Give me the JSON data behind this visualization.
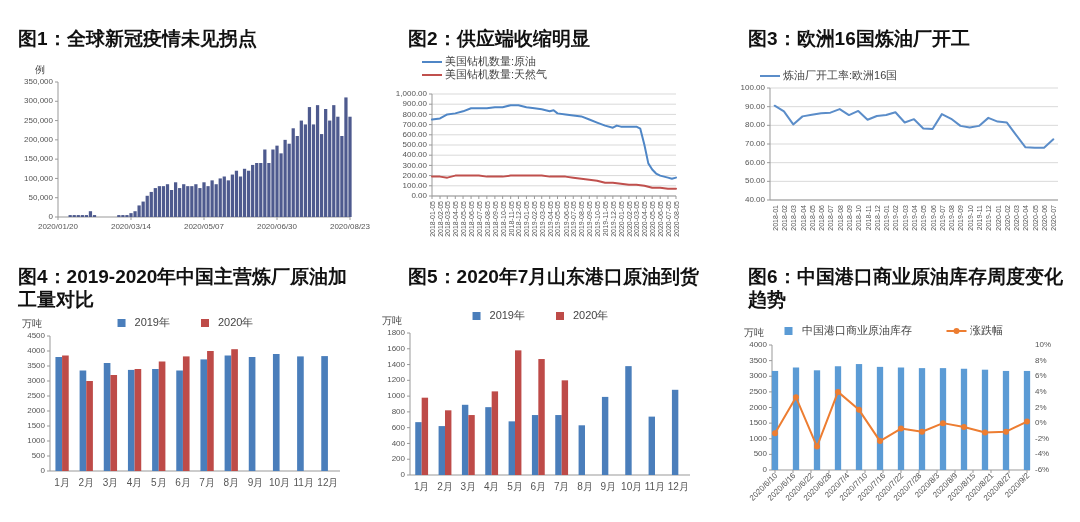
{
  "chart_data": [
    {
      "type": "bar",
      "title": "图1：全球新冠疫情未见拐点",
      "ylabel": "例",
      "x": [
        "2020-01-20",
        "2020-01-23",
        "2020-01-26",
        "2020-01-29",
        "2020-02-01",
        "2020-02-04",
        "2020-02-07",
        "2020-02-10",
        "2020-02-13",
        "2020-02-16",
        "2020-02-19",
        "2020-02-22",
        "2020-02-25",
        "2020-02-28",
        "2020-03-02",
        "2020-03-05",
        "2020-03-08",
        "2020-03-11",
        "2020-03-14",
        "2020-03-17",
        "2020-03-20",
        "2020-03-23",
        "2020-03-26",
        "2020-03-29",
        "2020-04-01",
        "2020-04-04",
        "2020-04-07",
        "2020-04-10",
        "2020-04-13",
        "2020-04-16",
        "2020-04-19",
        "2020-04-22",
        "2020-04-25",
        "2020-04-28",
        "2020-05-01",
        "2020-05-04",
        "2020-05-07",
        "2020-05-10",
        "2020-05-13",
        "2020-05-16",
        "2020-05-19",
        "2020-05-22",
        "2020-05-25",
        "2020-05-28",
        "2020-05-31",
        "2020-06-03",
        "2020-06-06",
        "2020-06-09",
        "2020-06-12",
        "2020-06-15",
        "2020-06-18",
        "2020-06-21",
        "2020-06-24",
        "2020-06-27",
        "2020-06-30",
        "2020-07-03",
        "2020-07-06",
        "2020-07-09",
        "2020-07-12",
        "2020-07-15",
        "2020-07-18",
        "2020-07-21",
        "2020-07-24",
        "2020-07-27",
        "2020-07-30",
        "2020-08-02",
        "2020-08-05",
        "2020-08-08",
        "2020-08-11",
        "2020-08-14",
        "2020-08-17",
        "2020-08-20",
        "2020-08-23"
      ],
      "series": [
        {
          "color": "#4e5a8e",
          "values": [
            0,
            0,
            0,
            5000,
            5000,
            5000,
            5000,
            5000,
            15000,
            5000,
            0,
            0,
            0,
            0,
            0,
            5000,
            5000,
            5000,
            10000,
            15000,
            30000,
            40000,
            55000,
            65000,
            75000,
            80000,
            80000,
            85000,
            70000,
            90000,
            75000,
            85000,
            80000,
            80000,
            85000,
            75000,
            90000,
            80000,
            95000,
            85000,
            100000,
            105000,
            95000,
            110000,
            120000,
            105000,
            125000,
            120000,
            135000,
            140000,
            140000,
            175000,
            140000,
            175000,
            185000,
            165000,
            200000,
            190000,
            230000,
            210000,
            250000,
            240000,
            285000,
            240000,
            290000,
            215000,
            280000,
            250000,
            290000,
            260000,
            210000,
            310000,
            260000
          ]
        }
      ],
      "xlim": [
        "2020-01-20",
        "2020-08-23"
      ],
      "xticks": [
        {
          "value": "2020-01-20",
          "label": "2020/01/20"
        },
        {
          "value": "2020-03-14",
          "label": "2020/03/14"
        },
        {
          "value": "2020-05-07",
          "label": "2020/05/07"
        },
        {
          "value": "2020-06-30",
          "label": "2020/06/30"
        },
        {
          "value": "2020-08-23",
          "label": "2020/08/23"
        }
      ],
      "ylim": [
        0,
        350000
      ],
      "yticks": [
        {
          "value": 0,
          "label": "0"
        },
        {
          "value": 50000,
          "label": "50,000"
        },
        {
          "value": 100000,
          "label": "100,000"
        },
        {
          "value": 150000,
          "label": "150,000"
        },
        {
          "value": 200000,
          "label": "200,000"
        },
        {
          "value": 250000,
          "label": "250,000"
        },
        {
          "value": 300000,
          "label": "300,000"
        },
        {
          "value": 350000,
          "label": "350,000"
        }
      ],
      "grid": false,
      "legend": false
    },
    {
      "type": "line",
      "title": "图2：供应端收缩明显",
      "legend": "top left",
      "grid": "y",
      "series": [
        {
          "name": "美国钻机数量:原油",
          "color": "#4f86c6",
          "x": [
            "2018-01-05",
            "2018-02-05",
            "2018-03-05",
            "2018-04-05",
            "2018-05-05",
            "2018-06-05",
            "2018-07-05",
            "2018-08-05",
            "2018-09-05",
            "2018-10-05",
            "2018-11-05",
            "2018-11-20",
            "2018-12-05",
            "2019-01-05",
            "2019-02-05",
            "2019-03-05",
            "2019-04-05",
            "2019-04-20",
            "2019-05-05",
            "2019-06-05",
            "2019-07-05",
            "2019-08-05",
            "2019-09-05",
            "2019-10-05",
            "2019-11-05",
            "2019-12-05",
            "2019-12-20",
            "2020-01-05",
            "2020-02-05",
            "2020-03-05",
            "2020-03-20",
            "2020-04-05",
            "2020-04-20",
            "2020-05-05",
            "2020-05-20",
            "2020-06-05",
            "2020-07-05",
            "2020-07-20",
            "2020-08-05"
          ],
          "values": [
            750,
            760,
            800,
            810,
            830,
            860,
            860,
            860,
            870,
            870,
            890,
            890,
            890,
            870,
            860,
            850,
            830,
            840,
            810,
            800,
            790,
            780,
            750,
            720,
            690,
            670,
            690,
            680,
            680,
            680,
            660,
            500,
            320,
            260,
            220,
            200,
            180,
            170,
            180
          ]
        },
        {
          "name": "美国钻机数量:天然气",
          "color": "#c0504d",
          "x": [
            "2018-01-05",
            "2018-02-05",
            "2018-03-05",
            "2018-04-05",
            "2018-05-05",
            "2018-06-05",
            "2018-07-05",
            "2018-08-05",
            "2018-09-05",
            "2018-10-05",
            "2018-11-05",
            "2018-12-05",
            "2019-01-05",
            "2019-02-05",
            "2019-03-05",
            "2019-04-05",
            "2019-05-05",
            "2019-06-05",
            "2019-07-05",
            "2019-08-05",
            "2019-09-05",
            "2019-10-05",
            "2019-11-05",
            "2019-12-05",
            "2020-01-05",
            "2020-02-05",
            "2020-03-05",
            "2020-04-05",
            "2020-05-05",
            "2020-06-05",
            "2020-07-05",
            "2020-08-05"
          ],
          "values": [
            190,
            190,
            180,
            200,
            200,
            200,
            200,
            190,
            190,
            190,
            200,
            200,
            200,
            200,
            200,
            190,
            190,
            190,
            180,
            170,
            160,
            150,
            130,
            130,
            120,
            110,
            110,
            100,
            80,
            80,
            70,
            70
          ]
        }
      ],
      "xlim": [
        "2018-01-05",
        "2020-08-05"
      ],
      "xticks": [
        "2018-01-05",
        "2018-02-05",
        "2018-03-05",
        "2018-04-05",
        "2018-05-05",
        "2018-06-05",
        "2018-07-05",
        "2018-08-05",
        "2018-09-05",
        "2018-10-05",
        "2018-11-05",
        "2018-12-05",
        "2019-01-05",
        "2019-02-05",
        "2019-03-05",
        "2019-04-05",
        "2019-05-05",
        "2019-06-05",
        "2019-07-05",
        "2019-08-05",
        "2019-09-05",
        "2019-10-05",
        "2019-11-05",
        "2019-12-05",
        "2020-01-05",
        "2020-02-05",
        "2020-03-05",
        "2020-04-05",
        "2020-05-05",
        "2020-06-05",
        "2020-07-05",
        "2020-08-05"
      ],
      "ylim": [
        0,
        1000
      ],
      "yticks": [
        {
          "value": 0,
          "label": "0.00"
        },
        {
          "value": 100,
          "label": "100.00"
        },
        {
          "value": 200,
          "label": "200.00"
        },
        {
          "value": 300,
          "label": "300.00"
        },
        {
          "value": 400,
          "label": "400.00"
        },
        {
          "value": 500,
          "label": "500.00"
        },
        {
          "value": 600,
          "label": "600.00"
        },
        {
          "value": 700,
          "label": "700.00"
        },
        {
          "value": 800,
          "label": "800.00"
        },
        {
          "value": 900,
          "label": "900.00"
        },
        {
          "value": 1000,
          "label": "1,000.00"
        }
      ]
    },
    {
      "type": "line",
      "title": "图3：欧洲16国炼油厂开工",
      "legend": "top left",
      "grid": "y",
      "categories": [
        "2018-01",
        "2018-02",
        "2018-03",
        "2018-04",
        "2018-05",
        "2018-06",
        "2018-07",
        "2018-08",
        "2018-09",
        "2018-10",
        "2018-11",
        "2018-12",
        "2019-01",
        "2019-02",
        "2019-03",
        "2019-04",
        "2019-05",
        "2019-06",
        "2019-07",
        "2019-08",
        "2019-09",
        "2019-10",
        "2019-11",
        "2019-12",
        "2020-01",
        "2020-02",
        "2020-03",
        "2020-04",
        "2020-05",
        "2020-06",
        "2020-07"
      ],
      "series": [
        {
          "name": "炼油厂开工率:欧洲16国",
          "color": "#5b8dc9",
          "values": [
            90.5,
            87.5,
            80.5,
            84.8,
            85.7,
            86.5,
            86.8,
            88.7,
            85.5,
            87.7,
            83,
            85,
            85.5,
            87,
            81.5,
            83.3,
            78.3,
            78,
            86,
            83.5,
            79.7,
            78.8,
            79.7,
            84,
            82,
            81.5,
            74.8,
            68.2,
            68,
            68,
            72.5
          ]
        }
      ],
      "ylim": [
        40,
        100
      ],
      "yticks": [
        {
          "value": 40,
          "label": "40.00"
        },
        {
          "value": 50,
          "label": "50.00"
        },
        {
          "value": 60,
          "label": "60.00"
        },
        {
          "value": 70,
          "label": "70.00"
        },
        {
          "value": 80,
          "label": "80.00"
        },
        {
          "value": 90,
          "label": "90.00"
        },
        {
          "value": 100,
          "label": "100.00"
        }
      ]
    },
    {
      "type": "bar",
      "title": "图4：2019-2020年中国主营炼厂原油加工量对比",
      "ylabel": "万吨",
      "legend": "top",
      "grid": false,
      "categories": [
        "1月",
        "2月",
        "3月",
        "4月",
        "5月",
        "6月",
        "7月",
        "8月",
        "9月",
        "10月",
        "11月",
        "12月"
      ],
      "series": [
        {
          "name": "2019年",
          "color": "#4a7ebb",
          "values": [
            3800,
            3350,
            3600,
            3370,
            3400,
            3350,
            3720,
            3850,
            3800,
            3900,
            3820,
            3830
          ]
        },
        {
          "name": "2020年",
          "color": "#be4b48",
          "values": [
            3850,
            3000,
            3200,
            3400,
            3650,
            3820,
            4000,
            4060,
            null,
            null,
            null,
            null
          ]
        }
      ],
      "ylim": [
        0,
        4500
      ],
      "yticks": [
        0,
        500,
        1000,
        1500,
        2000,
        2500,
        3000,
        3500,
        4000,
        4500
      ]
    },
    {
      "type": "bar",
      "title": "图5：2020年7月山东港口原油到货",
      "ylabel": "万吨",
      "legend": "top",
      "grid": false,
      "categories": [
        "1月",
        "2月",
        "3月",
        "4月",
        "5月",
        "6月",
        "7月",
        "8月",
        "9月",
        "10月",
        "11月",
        "12月"
      ],
      "series": [
        {
          "name": "2019年",
          "color": "#4a7ebb",
          "values": [
            670,
            620,
            890,
            860,
            680,
            760,
            760,
            630,
            990,
            1380,
            740,
            1080
          ]
        },
        {
          "name": "2020年",
          "color": "#be4b48",
          "values": [
            980,
            820,
            760,
            1060,
            1580,
            1470,
            1200,
            null,
            null,
            null,
            null,
            null
          ]
        }
      ],
      "ylim": [
        0,
        1800
      ],
      "yticks": [
        0,
        200,
        400,
        600,
        800,
        1000,
        1200,
        1400,
        1600,
        1800
      ]
    },
    {
      "type": "bar",
      "title": "图6：中国港口商业原油库存周度变化趋势",
      "ylabel": "万吨",
      "legend": "top",
      "grid": false,
      "marker": "circle",
      "x": [
        "2020-06-10",
        "2020-06-17",
        "2020-06-24",
        "2020-07-01",
        "2020-07-08",
        "2020-07-15",
        "2020-07-22",
        "2020-07-29",
        "2020-08-05",
        "2020-08-12",
        "2020-08-19",
        "2020-08-26",
        "2020-09-02"
      ],
      "series": [
        {
          "name": "中国港口商业原油库存",
          "color": "#5b9bd5",
          "values": [
            3170,
            3280,
            3190,
            3320,
            3390,
            3300,
            3280,
            3260,
            3260,
            3240,
            3210,
            3170,
            3170
          ]
        },
        {
          "name": "涨跌幅",
          "type": "line",
          "axis": "y2",
          "color": "#ed7d31",
          "values": [
            -1.3,
            3.3,
            -3.0,
            4.0,
            1.7,
            -2.3,
            -0.7,
            -1.1,
            0.0,
            -0.5,
            -1.2,
            -1.1,
            0.2
          ]
        }
      ],
      "xlim": [
        "2020-06-09",
        "2020-09-03"
      ],
      "xticks": [
        {
          "value": "2020-06-10",
          "label": "2020/6/10"
        },
        {
          "value": "2020-06-16",
          "label": "2020/6/16"
        },
        {
          "value": "2020-06-22",
          "label": "2020/6/22"
        },
        {
          "value": "2020-06-28",
          "label": "2020/6/28"
        },
        {
          "value": "2020-07-04",
          "label": "2020/7/4"
        },
        {
          "value": "2020-07-10",
          "label": "2020/7/10"
        },
        {
          "value": "2020-07-16",
          "label": "2020/7/16"
        },
        {
          "value": "2020-07-22",
          "label": "2020/7/22"
        },
        {
          "value": "2020-07-28",
          "label": "2020/7/28"
        },
        {
          "value": "2020-08-03",
          "label": "2020/8/3"
        },
        {
          "value": "2020-08-09",
          "label": "2020/8/9"
        },
        {
          "value": "2020-08-15",
          "label": "2020/8/15"
        },
        {
          "value": "2020-08-21",
          "label": "2020/8/21"
        },
        {
          "value": "2020-08-27",
          "label": "2020/8/27"
        },
        {
          "value": "2020-09-02",
          "label": "2020/9/2"
        }
      ],
      "ylim": [
        0,
        4000
      ],
      "yticks": [
        0,
        500,
        1000,
        1500,
        2000,
        2500,
        3000,
        3500,
        4000
      ],
      "y2lim": [
        -6,
        10
      ],
      "y2ticks": [
        {
          "value": -6,
          "label": "-6%"
        },
        {
          "value": -4,
          "label": "-4%"
        },
        {
          "value": -2,
          "label": "-2%"
        },
        {
          "value": 0,
          "label": "0%"
        },
        {
          "value": 2,
          "label": "2%"
        },
        {
          "value": 4,
          "label": "4%"
        },
        {
          "value": 6,
          "label": "6%"
        },
        {
          "value": 8,
          "label": "8%"
        },
        {
          "value": 10,
          "label": "10%"
        }
      ]
    }
  ]
}
